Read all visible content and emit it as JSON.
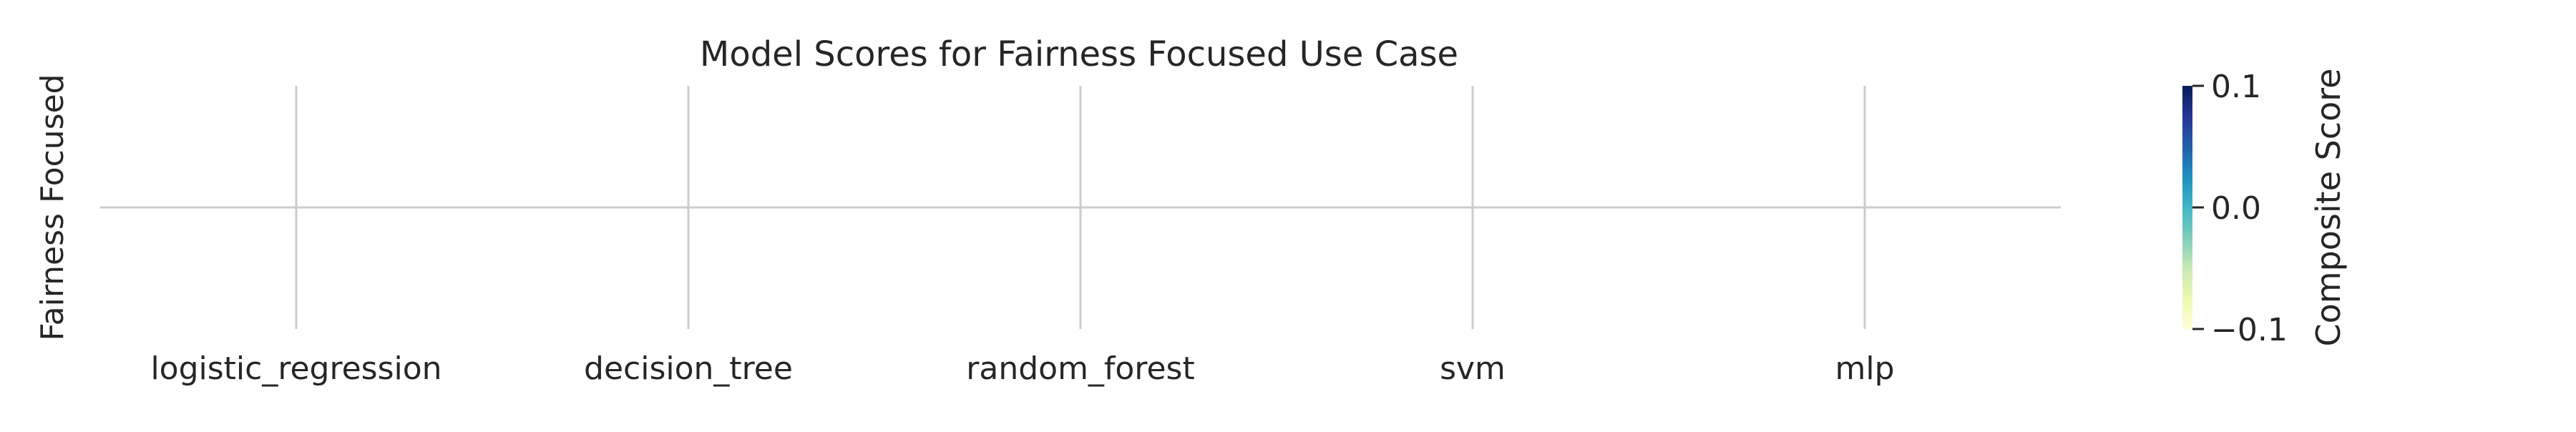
{
  "chart_data": {
    "type": "heatmap",
    "title": "Model Scores for Fairness Focused Use Case",
    "xlabel": "",
    "ylabel": "",
    "categories": [
      "logistic_regression",
      "decision_tree",
      "random_forest",
      "svm",
      "mlp"
    ],
    "rows": [
      "Fairness Focused"
    ],
    "values": [
      [
        null,
        null,
        null,
        null,
        null
      ]
    ],
    "grid": true,
    "colorbar": {
      "label": "Composite Score",
      "ticks": [
        "0.1",
        "0.0",
        "−0.1"
      ],
      "range": [
        -0.1,
        0.1
      ],
      "colormap": "YlGnBu",
      "colors": [
        "#ffffd9",
        "#edf8b1",
        "#c7e9b4",
        "#7fcdbb",
        "#41b6c4",
        "#1d91c0",
        "#225ea8",
        "#253494",
        "#081d58"
      ]
    },
    "grid_color": "#cccccc"
  }
}
